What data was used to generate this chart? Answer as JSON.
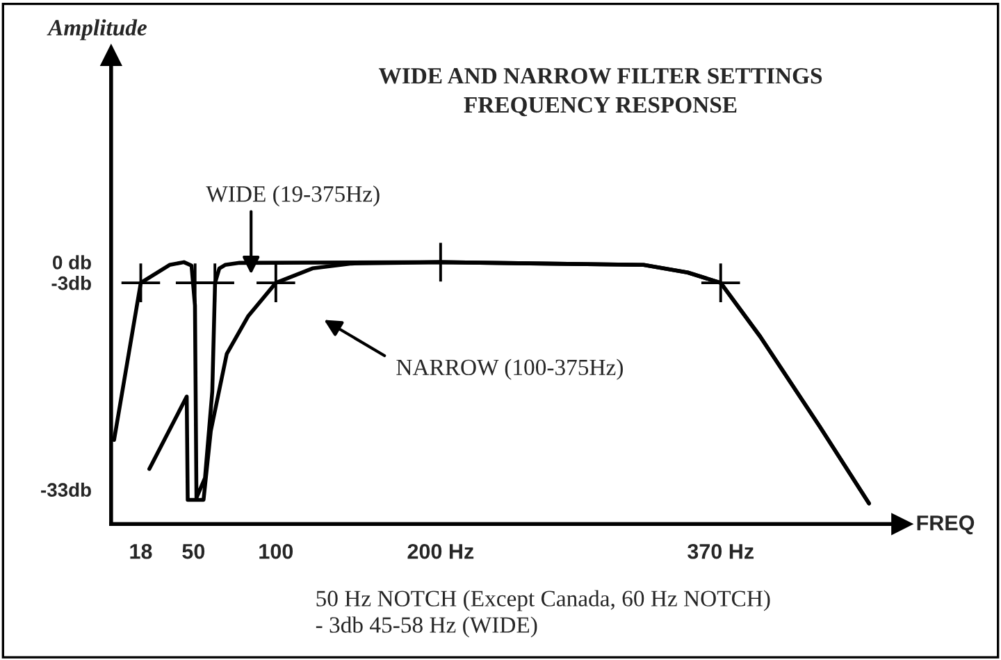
{
  "chart_data": {
    "type": "line",
    "title": "WIDE AND NARROW FILTER SETTINGS\nFREQUENCY RESPONSE",
    "xlabel": "FREQ",
    "ylabel": "Amplitude",
    "xlim": [
      0,
      480
    ],
    "ylim": [
      -38,
      30
    ],
    "xticks": [
      18,
      50,
      100,
      {
        "value": 200,
        "label": "200 Hz"
      },
      {
        "value": 370,
        "label": "370 Hz"
      }
    ],
    "yticks": [
      {
        "value": 0,
        "label": "0 db"
      },
      {
        "value": -3,
        "label": "-3db"
      },
      {
        "value": -33,
        "label": "-33db"
      }
    ],
    "grid": false,
    "legend": false,
    "line_style": "solid",
    "marker": "none",
    "series": [
      {
        "color": "#000000",
        "x": [
          1.8,
          18,
          35.5,
          44.2,
          48.8,
          50.9,
          51.8,
          57.0,
          61.4,
          63.1,
          65.7,
          69.2,
          78,
          200,
          323.2,
          350,
          370,
          394,
          430,
          460
        ],
        "values": [
          -25.8,
          -3,
          -0.4,
          0,
          -0.5,
          -6.3,
          -34.2,
          -31.3,
          -18.8,
          -3,
          -0.9,
          -0.4,
          -0.1,
          0,
          -0.4,
          -1.5,
          -3,
          -10.8,
          -23.8,
          -35
        ]
      },
      {
        "color": "#000000",
        "x": [
          23.2,
          45.9,
          46.5,
          56.1,
          60.5,
          70.2,
          83.3,
          100,
          122.2,
          146,
          200,
          323.2,
          350,
          370,
          394,
          430,
          460
        ],
        "values": [
          -30,
          -19.5,
          -34.5,
          -34.5,
          -24.5,
          -13.3,
          -7.8,
          -3,
          -0.9,
          -0.2,
          0,
          -0.4,
          -1.5,
          -3,
          -10.8,
          -23.8,
          -35
        ]
      },
      {
        "type": "scatter",
        "marker": "cross",
        "color": "#000000",
        "x": [
          18,
          51,
          63,
          100,
          200,
          370
        ],
        "values": [
          -3,
          -3,
          -3,
          -3,
          0,
          -3
        ]
      }
    ],
    "annotations": [
      "WIDE (19-375Hz)",
      "NARROW (100-375Hz)",
      "50 Hz NOTCH (Except Canada, 60 Hz NOTCH)",
      "- 3db 45-58 Hz (WIDE)"
    ]
  }
}
